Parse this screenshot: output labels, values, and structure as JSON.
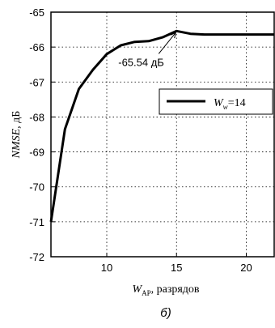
{
  "chart_data": {
    "type": "line",
    "title": "",
    "x": [
      6,
      7,
      8,
      9,
      10,
      11,
      12,
      13,
      14,
      15,
      16,
      17,
      18,
      19,
      20,
      21,
      22
    ],
    "series": [
      {
        "name_prefix": "W",
        "name_sub": "w",
        "name_suffix": "=14",
        "values": [
          -71.0,
          -68.35,
          -67.2,
          -66.65,
          -66.2,
          -65.95,
          -65.85,
          -65.83,
          -65.72,
          -65.54,
          -65.62,
          -65.64,
          -65.64,
          -65.64,
          -65.64,
          -65.64,
          -65.64
        ]
      }
    ],
    "xlim": [
      6,
      22
    ],
    "ylim": [
      -72,
      -65
    ],
    "x_ticks": [
      10,
      15,
      20
    ],
    "y_ticks": [
      -65,
      -66,
      -67,
      -68,
      -69,
      -70,
      -71,
      -72
    ],
    "x_tick_labels": [
      "10",
      "15",
      "20"
    ],
    "y_tick_labels": [
      "-65",
      "-66",
      "-67",
      "-68",
      "-69",
      "-70",
      "-71",
      "-72"
    ],
    "xlabel_italic": "W",
    "xlabel_sub": "AP",
    "xlabel_rest": ", разрядов",
    "ylabel_italic": "NMSE",
    "ylabel_rest": ", дБ",
    "grid": true,
    "legend_position": "upper-right",
    "annotation": {
      "text": "-65.54 дБ",
      "x": 15,
      "y": -65.54
    }
  },
  "caption": "б)"
}
